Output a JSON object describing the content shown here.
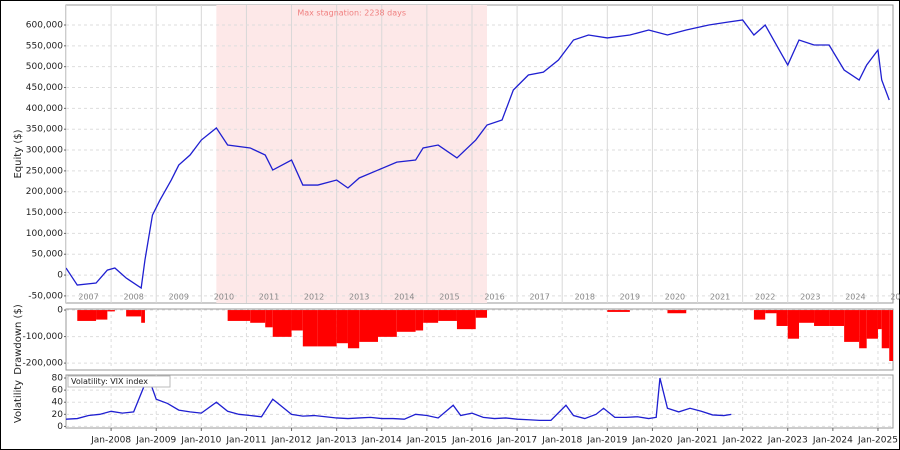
{
  "chart_data": [
    {
      "type": "line",
      "y_label": "Equity ($)",
      "color": "#1f1fd1",
      "x": [
        "2007-01",
        "2007-04",
        "2007-09",
        "2007-12",
        "2008-02",
        "2008-05",
        "2008-09",
        "2008-10",
        "2008-12",
        "2009-02",
        "2009-05",
        "2009-07",
        "2009-10",
        "2010-01",
        "2010-05",
        "2010-08",
        "2011-02",
        "2011-06",
        "2011-08",
        "2012-01",
        "2012-04",
        "2012-08",
        "2013-01",
        "2013-04",
        "2013-07",
        "2013-12",
        "2014-05",
        "2014-10",
        "2014-12",
        "2015-04",
        "2015-09",
        "2016-02",
        "2016-05",
        "2016-09",
        "2016-12",
        "2017-04",
        "2017-08",
        "2017-12",
        "2018-04",
        "2018-08",
        "2019-01",
        "2019-07",
        "2019-12",
        "2020-05",
        "2020-10",
        "2021-04",
        "2021-09",
        "2022-01",
        "2022-04",
        "2022-07",
        "2022-10",
        "2023-01",
        "2023-04",
        "2023-08",
        "2023-12",
        "2024-04",
        "2024-08",
        "2024-10",
        "2025-01",
        "2025-02",
        "2025-04"
      ],
      "values": [
        17000,
        -24000,
        -19000,
        12000,
        17000,
        -7000,
        -31000,
        36000,
        144000,
        180000,
        228000,
        264000,
        288000,
        324000,
        353000,
        312000,
        305000,
        288000,
        252000,
        276000,
        216000,
        216000,
        228000,
        209000,
        233000,
        252000,
        271000,
        276000,
        305000,
        312000,
        281000,
        324000,
        360000,
        372000,
        444000,
        480000,
        487000,
        516000,
        564000,
        576000,
        569000,
        576000,
        588000,
        576000,
        588000,
        600000,
        607000,
        612000,
        576000,
        600000,
        552000,
        504000,
        564000,
        552000,
        552000,
        492000,
        468000,
        504000,
        540000,
        468000,
        420000
      ],
      "xlim": [
        "2007-01",
        "2025-05"
      ],
      "xticks": [
        {
          "value": "2007-01",
          "label": "2007"
        },
        {
          "value": "2008-01",
          "label": "2008"
        },
        {
          "value": "2009-01",
          "label": "2009"
        },
        {
          "value": "2010-01",
          "label": "2010"
        },
        {
          "value": "2011-01",
          "label": "2011"
        },
        {
          "value": "2012-01",
          "label": "2012"
        },
        {
          "value": "2013-01",
          "label": "2013"
        },
        {
          "value": "2014-01",
          "label": "2014"
        },
        {
          "value": "2015-01",
          "label": "2015"
        },
        {
          "value": "2016-01",
          "label": "2016"
        },
        {
          "value": "2017-01",
          "label": "2017"
        },
        {
          "value": "2018-01",
          "label": "2018"
        },
        {
          "value": "2019-01",
          "label": "2019"
        },
        {
          "value": "2020-01",
          "label": "2020"
        },
        {
          "value": "2021-01",
          "label": "2021"
        },
        {
          "value": "2022-01",
          "label": "2022"
        },
        {
          "value": "2023-01",
          "label": "2023"
        },
        {
          "value": "2024-01",
          "label": "2024"
        },
        {
          "value": "2025-01",
          "label": "2025"
        }
      ],
      "ylim": [
        -67000,
        648000
      ],
      "yticks": [
        {
          "value": -50000,
          "label": "-50,000"
        },
        0,
        {
          "value": 50000,
          "label": "50,000"
        },
        {
          "value": 100000,
          "label": "100,000"
        },
        {
          "value": 150000,
          "label": "150,000"
        },
        {
          "value": 200000,
          "label": "200,000"
        },
        {
          "value": 250000,
          "label": "250,000"
        },
        {
          "value": 300000,
          "label": "300,000"
        },
        {
          "value": 350000,
          "label": "350,000"
        },
        {
          "value": 400000,
          "label": "400,000"
        },
        {
          "value": 450000,
          "label": "450,000"
        },
        {
          "value": 500000,
          "label": "500,000"
        },
        {
          "value": 550000,
          "label": "550,000"
        },
        {
          "value": 600000,
          "label": "600,000"
        }
      ],
      "grid": true,
      "stagnation": {
        "label": "Max stagnation: 2238 days",
        "start": "2010-05",
        "end": "2016-05"
      }
    },
    {
      "type": "bar",
      "y_label": "Drawdown ($)",
      "color": "#ff0000",
      "x": [
        "2007-01",
        "2007-04",
        "2007-09",
        "2007-12",
        "2008-02",
        "2008-05",
        "2008-09",
        "2008-10",
        "2008-12",
        "2009-02",
        "2009-05",
        "2009-07",
        "2009-10",
        "2010-01",
        "2010-05",
        "2010-08",
        "2011-02",
        "2011-06",
        "2011-08",
        "2012-01",
        "2012-04",
        "2012-08",
        "2013-01",
        "2013-04",
        "2013-07",
        "2013-12",
        "2014-05",
        "2014-10",
        "2014-12",
        "2015-04",
        "2015-09",
        "2016-02",
        "2016-05",
        "2016-09",
        "2016-12",
        "2017-04",
        "2017-08",
        "2017-12",
        "2018-04",
        "2018-08",
        "2019-01",
        "2019-07",
        "2019-12",
        "2020-05",
        "2020-10",
        "2021-04",
        "2021-09",
        "2022-01",
        "2022-04",
        "2022-07",
        "2022-10",
        "2023-01",
        "2023-04",
        "2023-08",
        "2023-12",
        "2024-04",
        "2024-08",
        "2024-10",
        "2025-01",
        "2025-02",
        "2025-04"
      ],
      "values": [
        0,
        -41000,
        -36000,
        -5000,
        0,
        -24000,
        -48000,
        0,
        0,
        0,
        0,
        0,
        0,
        0,
        0,
        -41000,
        -48000,
        -65000,
        -101000,
        -77000,
        -137000,
        -137000,
        -125000,
        -144000,
        -120000,
        -101000,
        -82000,
        -77000,
        -48000,
        -41000,
        -72000,
        -29000,
        0,
        0,
        0,
        0,
        0,
        0,
        0,
        0,
        -7000,
        0,
        0,
        -12000,
        0,
        0,
        0,
        0,
        -36000,
        -12000,
        -60000,
        -108000,
        -48000,
        -60000,
        -60000,
        -120000,
        -144000,
        -108000,
        -72000,
        -144000,
        -192000
      ],
      "xlim": [
        "2007-01",
        "2025-05"
      ],
      "ylim": [
        -226000,
        4000
      ],
      "yticks": [
        0,
        {
          "value": -100000,
          "label": "-100,000"
        },
        {
          "value": -200000,
          "label": "-200,000"
        }
      ],
      "grid": true
    },
    {
      "type": "line",
      "y_label": "Volatility",
      "x": [
        "2007-01",
        "2007-04",
        "2007-07",
        "2007-10",
        "2008-01",
        "2008-04",
        "2008-07",
        "2008-10",
        "2008-11",
        "2009-01",
        "2009-04",
        "2009-07",
        "2009-10",
        "2010-01",
        "2010-05",
        "2010-08",
        "2010-11",
        "2011-02",
        "2011-05",
        "2011-08",
        "2011-10",
        "2012-01",
        "2012-04",
        "2012-07",
        "2012-10",
        "2013-01",
        "2013-04",
        "2013-07",
        "2013-10",
        "2014-01",
        "2014-04",
        "2014-07",
        "2014-10",
        "2015-01",
        "2015-04",
        "2015-08",
        "2015-10",
        "2016-01",
        "2016-04",
        "2016-07",
        "2016-10",
        "2017-01",
        "2017-04",
        "2017-07",
        "2017-10",
        "2018-02",
        "2018-04",
        "2018-07",
        "2018-10",
        "2018-12",
        "2019-03",
        "2019-06",
        "2019-09",
        "2019-12",
        "2020-02",
        "2020-03",
        "2020-05",
        "2020-08",
        "2020-11",
        "2021-02",
        "2021-05",
        "2021-08",
        "2021-10"
      ],
      "series": [
        {
          "name": "Volatility: VIX index",
          "color": "#1f1fd1",
          "values": [
            12,
            13,
            18,
            20,
            25,
            22,
            24,
            70,
            80,
            45,
            38,
            27,
            24,
            22,
            40,
            25,
            20,
            18,
            16,
            45,
            35,
            20,
            17,
            18,
            16,
            14,
            13,
            14,
            15,
            13,
            13,
            12,
            20,
            18,
            14,
            35,
            18,
            22,
            15,
            13,
            14,
            12,
            11,
            10,
            10,
            35,
            18,
            13,
            20,
            30,
            15,
            15,
            16,
            13,
            15,
            80,
            30,
            24,
            30,
            25,
            19,
            18,
            20
          ]
        }
      ],
      "xlim": [
        "2007-01",
        "2025-05"
      ],
      "xticks": [
        {
          "value": "2008-01",
          "label": "Jan-2008"
        },
        {
          "value": "2009-01",
          "label": "Jan-2009"
        },
        {
          "value": "2010-01",
          "label": "Jan-2010"
        },
        {
          "value": "2011-01",
          "label": "Jan-2011"
        },
        {
          "value": "2012-01",
          "label": "Jan-2012"
        },
        {
          "value": "2013-01",
          "label": "Jan-2013"
        },
        {
          "value": "2014-01",
          "label": "Jan-2014"
        },
        {
          "value": "2015-01",
          "label": "Jan-2015"
        },
        {
          "value": "2016-01",
          "label": "Jan-2016"
        },
        {
          "value": "2017-01",
          "label": "Jan-2017"
        },
        {
          "value": "2018-01",
          "label": "Jan-2018"
        },
        {
          "value": "2019-01",
          "label": "Jan-2019"
        },
        {
          "value": "2020-01",
          "label": "Jan-2020"
        },
        {
          "value": "2021-01",
          "label": "Jan-2021"
        },
        {
          "value": "2022-01",
          "label": "Jan-2022"
        },
        {
          "value": "2023-01",
          "label": "Jan-2023"
        },
        {
          "value": "2024-01",
          "label": "Jan-2024"
        },
        {
          "value": "2025-01",
          "label": "Jan-2025"
        }
      ],
      "ylim": [
        -2.6,
        85
      ],
      "yticks": [
        0,
        20,
        40,
        60,
        80
      ],
      "grid": true
    }
  ]
}
